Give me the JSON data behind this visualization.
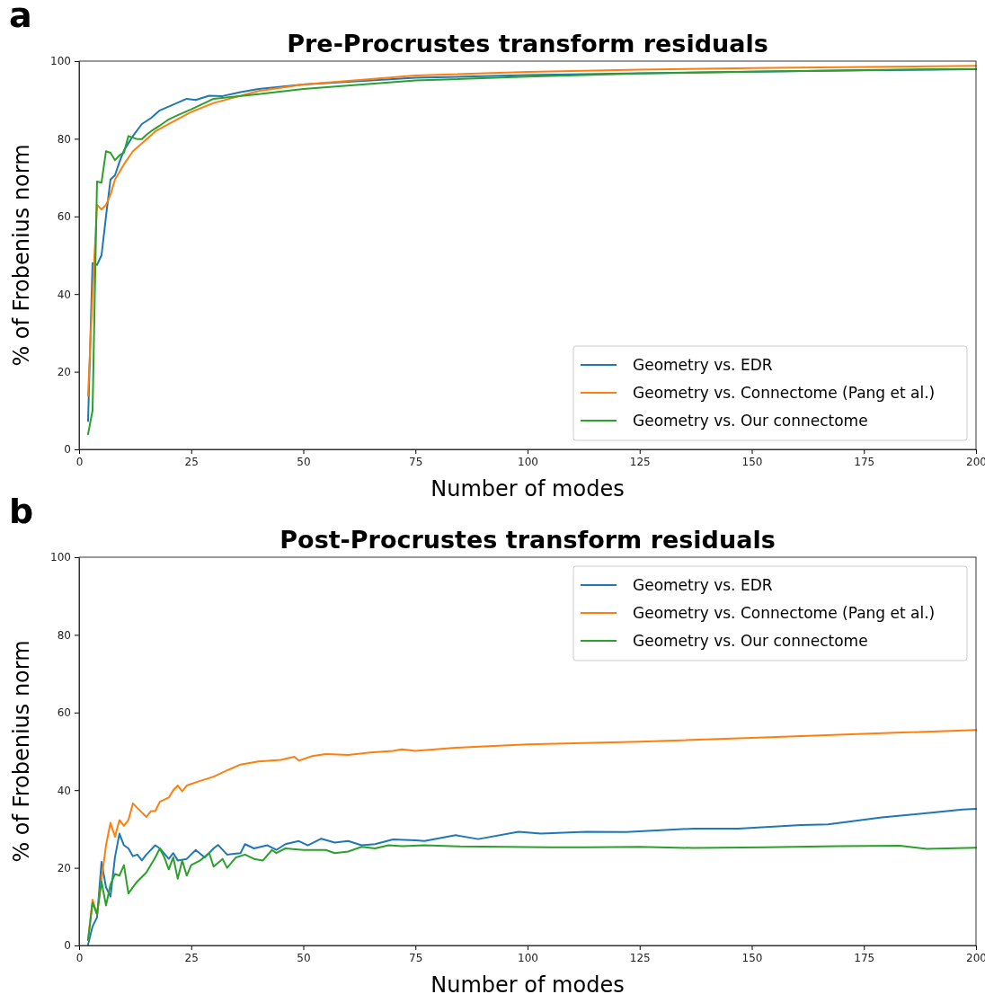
{
  "chart_data": [
    {
      "type": "line",
      "title": "Pre-Procrustes transform residuals",
      "xlabel": "Number of modes",
      "ylabel": "% of Frobenius norm",
      "annotations": [
        "a"
      ],
      "xlim": [
        0,
        200
      ],
      "xticks": [
        0,
        25,
        50,
        75,
        100,
        125,
        150,
        175,
        200
      ],
      "ylim": [
        0,
        100
      ],
      "yticks": [
        0,
        20,
        40,
        60,
        80,
        100
      ],
      "grid": false,
      "legend": "bottom right",
      "series": [
        {
          "name": "Geometry vs. EDR",
          "color": "#1f77b4",
          "x": [
            2,
            3,
            4,
            5,
            6,
            7,
            8,
            9,
            10,
            12,
            14,
            16,
            18,
            21,
            24,
            26,
            29,
            32,
            36,
            40,
            50,
            75,
            100,
            125,
            150,
            175,
            200
          ],
          "values": [
            7.3,
            48,
            47.5,
            50,
            60,
            69.5,
            70.6,
            74,
            77,
            80.7,
            83.8,
            85.3,
            87.3,
            88.8,
            90.3,
            90,
            91.1,
            91,
            92,
            92.8,
            94,
            95.7,
            96.4,
            96.9,
            97.3,
            97.6,
            97.9
          ]
        },
        {
          "name": "Geometry vs. Connectome (Pang et al.)",
          "color": "#ff7f0e",
          "x": [
            2,
            3,
            4,
            5,
            6,
            7,
            8,
            10,
            12,
            14,
            17,
            20,
            25,
            30,
            40,
            50,
            75,
            100,
            125,
            150,
            175,
            200
          ],
          "values": [
            13.9,
            40,
            63,
            61.8,
            63,
            65.6,
            69.5,
            73.4,
            76.8,
            78.8,
            81.9,
            83.8,
            86.9,
            89.2,
            92.3,
            94,
            96.3,
            97.2,
            97.8,
            98.2,
            98.5,
            98.8
          ]
        },
        {
          "name": "Geometry vs. Our connectome",
          "color": "#2ca02c",
          "x": [
            2,
            3,
            4,
            5,
            6,
            7,
            8,
            9,
            10,
            11,
            12,
            13,
            14,
            15,
            16,
            18,
            20,
            22,
            25,
            30,
            40,
            50,
            75,
            100,
            125,
            150,
            175,
            200
          ],
          "values": [
            3.9,
            10,
            69,
            68.7,
            76.8,
            76.4,
            74.5,
            75.7,
            76.4,
            80.7,
            80.3,
            79.9,
            79.9,
            81,
            81.9,
            83.4,
            85,
            86.1,
            87.6,
            90.3,
            91.5,
            92.8,
            95,
            96,
            96.8,
            97.3,
            97.7,
            98
          ]
        }
      ]
    },
    {
      "type": "line",
      "title": "Post-Procrustes transform residuals",
      "xlabel": "Number of modes",
      "ylabel": "% of Frobenius norm",
      "annotations": [
        "b"
      ],
      "xlim": [
        0,
        200
      ],
      "xticks": [
        0,
        25,
        50,
        75,
        100,
        125,
        150,
        175,
        200
      ],
      "ylim": [
        0,
        100
      ],
      "yticks": [
        0,
        20,
        40,
        60,
        80,
        100
      ],
      "grid": false,
      "legend": "top right",
      "series": [
        {
          "name": "Geometry vs. EDR",
          "color": "#1f77b4",
          "x": [
            2,
            3,
            4,
            5,
            6,
            7,
            8,
            9,
            10,
            11,
            12,
            13,
            14,
            15,
            17,
            18,
            20,
            21,
            22,
            24,
            26,
            28,
            30,
            31,
            33,
            36,
            37,
            39,
            42,
            44,
            46,
            49,
            51,
            54,
            57,
            60,
            63,
            66,
            70,
            75,
            77,
            84,
            89,
            98,
            103,
            113,
            122,
            137,
            147,
            161,
            167,
            179,
            191,
            197,
            200
          ],
          "values": [
            0.2,
            4.9,
            7.2,
            21.5,
            15,
            12.6,
            22.7,
            28.8,
            25.8,
            25,
            23,
            23.4,
            21.9,
            23.4,
            25.8,
            25,
            22.3,
            23.8,
            21.9,
            22.3,
            24.6,
            22.7,
            25,
            25.9,
            23.4,
            23.8,
            26.1,
            25,
            25.8,
            24.6,
            26.1,
            26.9,
            25.8,
            27.5,
            26.5,
            26.9,
            25.8,
            26.1,
            27.3,
            27.1,
            26.9,
            28.4,
            27.4,
            29.3,
            28.8,
            29.3,
            29.2,
            30.1,
            30.1,
            31,
            31.2,
            33,
            34.3,
            35,
            35.2
          ]
        },
        {
          "name": "Geometry vs. Connectome (Pang et al.)",
          "color": "#ff7f0e",
          "x": [
            2,
            3,
            4,
            5,
            6,
            7,
            8,
            9,
            10,
            11,
            12,
            13,
            15,
            16,
            17,
            18,
            20,
            21,
            22,
            23,
            24,
            27,
            30,
            33,
            36,
            40,
            45,
            48,
            49,
            52,
            55,
            60,
            65,
            70,
            72,
            75,
            85,
            100,
            125,
            150,
            175,
            200
          ],
          "values": [
            1.4,
            11.8,
            8,
            17,
            25.8,
            31.6,
            28,
            32.3,
            30.8,
            32.3,
            36.6,
            35.4,
            33.1,
            34.6,
            34.6,
            37,
            38.1,
            40,
            41.2,
            39.7,
            41.2,
            42.4,
            43.5,
            45.1,
            46.6,
            47.4,
            47.8,
            48.6,
            47.6,
            48.8,
            49.3,
            49.1,
            49.7,
            50.1,
            50.5,
            50.1,
            51,
            51.8,
            52.5,
            53.5,
            54.5,
            55.5
          ]
        },
        {
          "name": "Geometry vs. Our connectome",
          "color": "#2ca02c",
          "x": [
            2,
            3,
            4,
            5,
            6,
            7,
            8,
            9,
            10,
            11,
            12,
            13,
            15,
            17,
            18,
            19,
            20,
            21,
            22,
            23,
            24,
            25,
            27,
            29,
            30,
            32,
            33,
            35,
            37,
            39,
            41,
            43,
            44,
            46,
            50,
            55,
            57,
            60,
            63,
            66,
            69,
            72,
            77,
            85,
            95,
            105,
            113,
            125,
            137,
            153,
            169,
            183,
            189,
            200
          ],
          "values": [
            1.4,
            11,
            8,
            16.5,
            10.3,
            15.7,
            18.4,
            18,
            20.7,
            13.4,
            15,
            16.5,
            18.8,
            22.7,
            25,
            22.7,
            19.6,
            22.7,
            17.2,
            21.9,
            18,
            20.7,
            21.9,
            23.8,
            20.3,
            22.3,
            20,
            22.7,
            23.4,
            22.3,
            21.9,
            24.6,
            23.8,
            25,
            24.6,
            24.6,
            23.8,
            24.2,
            25.4,
            25,
            25.8,
            25.6,
            25.8,
            25.5,
            25.4,
            25.3,
            25.3,
            25.4,
            25.1,
            25.3,
            25.6,
            25.7,
            24.9,
            25.2
          ]
        }
      ]
    }
  ]
}
